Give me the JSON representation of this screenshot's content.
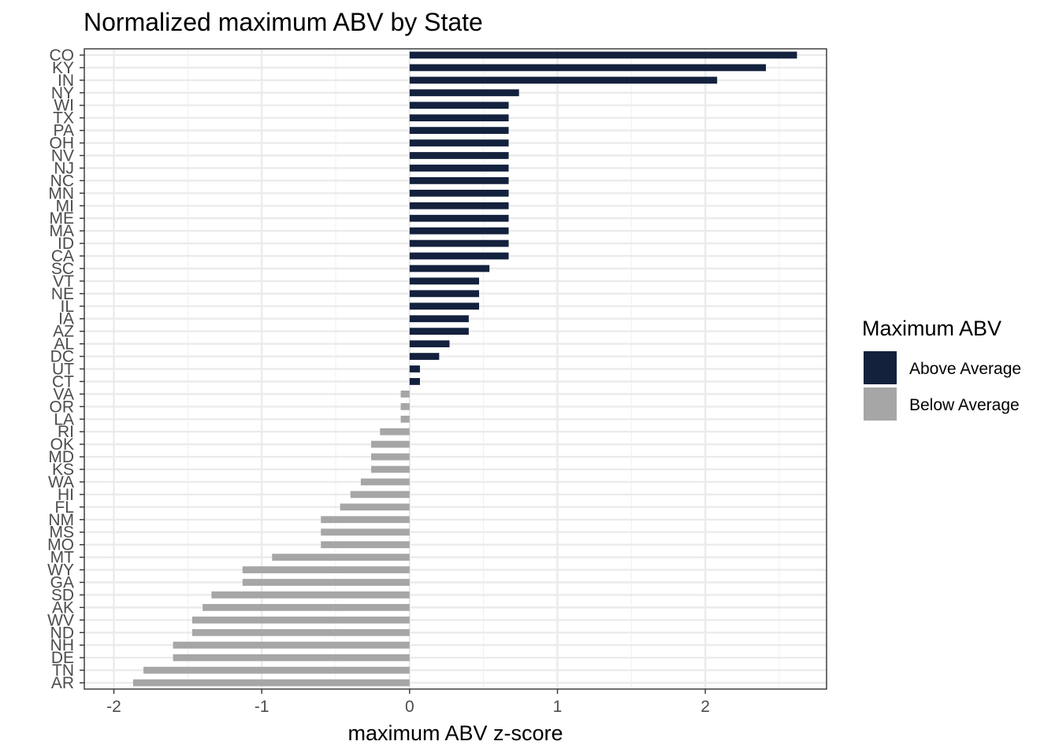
{
  "chart_data": {
    "type": "bar",
    "orientation": "horizontal",
    "title": "Normalized maximum ABV by State",
    "xlabel": "maximum ABV z-score",
    "ylabel": "",
    "xlim": [
      -2.2,
      2.82
    ],
    "xticks": [
      -2,
      -1,
      0,
      1,
      2
    ],
    "xtick_labels": [
      "-2",
      "-1",
      "0",
      "1",
      "2"
    ],
    "grid": true,
    "legend": {
      "title": "Maximum ABV",
      "position": "right",
      "items": [
        {
          "label": "Above Average",
          "color": "#13213d"
        },
        {
          "label": "Below Average",
          "color": "#a6a6a6"
        }
      ]
    },
    "categories": [
      "CO",
      "KY",
      "IN",
      "NY",
      "WI",
      "TX",
      "PA",
      "OH",
      "NV",
      "NJ",
      "NC",
      "MN",
      "MI",
      "ME",
      "MA",
      "ID",
      "CA",
      "SC",
      "VT",
      "NE",
      "IL",
      "IA",
      "AZ",
      "AL",
      "DC",
      "UT",
      "CT",
      "VA",
      "OR",
      "LA",
      "RI",
      "OK",
      "MD",
      "KS",
      "WA",
      "HI",
      "FL",
      "NM",
      "MS",
      "MO",
      "MT",
      "WY",
      "GA",
      "SD",
      "AK",
      "WV",
      "ND",
      "NH",
      "DE",
      "TN",
      "AR"
    ],
    "values": [
      2.62,
      2.41,
      2.08,
      0.74,
      0.67,
      0.67,
      0.67,
      0.67,
      0.67,
      0.67,
      0.67,
      0.67,
      0.67,
      0.67,
      0.67,
      0.67,
      0.67,
      0.54,
      0.47,
      0.47,
      0.47,
      0.4,
      0.4,
      0.27,
      0.2,
      0.07,
      0.07,
      -0.06,
      -0.06,
      -0.06,
      -0.2,
      -0.26,
      -0.26,
      -0.26,
      -0.33,
      -0.4,
      -0.47,
      -0.6,
      -0.6,
      -0.6,
      -0.93,
      -1.13,
      -1.13,
      -1.34,
      -1.4,
      -1.47,
      -1.47,
      -1.6,
      -1.6,
      -1.8,
      -1.87
    ],
    "groups": [
      "Above Average",
      "Above Average",
      "Above Average",
      "Above Average",
      "Above Average",
      "Above Average",
      "Above Average",
      "Above Average",
      "Above Average",
      "Above Average",
      "Above Average",
      "Above Average",
      "Above Average",
      "Above Average",
      "Above Average",
      "Above Average",
      "Above Average",
      "Above Average",
      "Above Average",
      "Above Average",
      "Above Average",
      "Above Average",
      "Above Average",
      "Above Average",
      "Above Average",
      "Above Average",
      "Above Average",
      "Below Average",
      "Below Average",
      "Below Average",
      "Below Average",
      "Below Average",
      "Below Average",
      "Below Average",
      "Below Average",
      "Below Average",
      "Below Average",
      "Below Average",
      "Below Average",
      "Below Average",
      "Below Average",
      "Below Average",
      "Below Average",
      "Below Average",
      "Below Average",
      "Below Average",
      "Below Average",
      "Below Average",
      "Below Average",
      "Below Average",
      "Below Average"
    ]
  }
}
